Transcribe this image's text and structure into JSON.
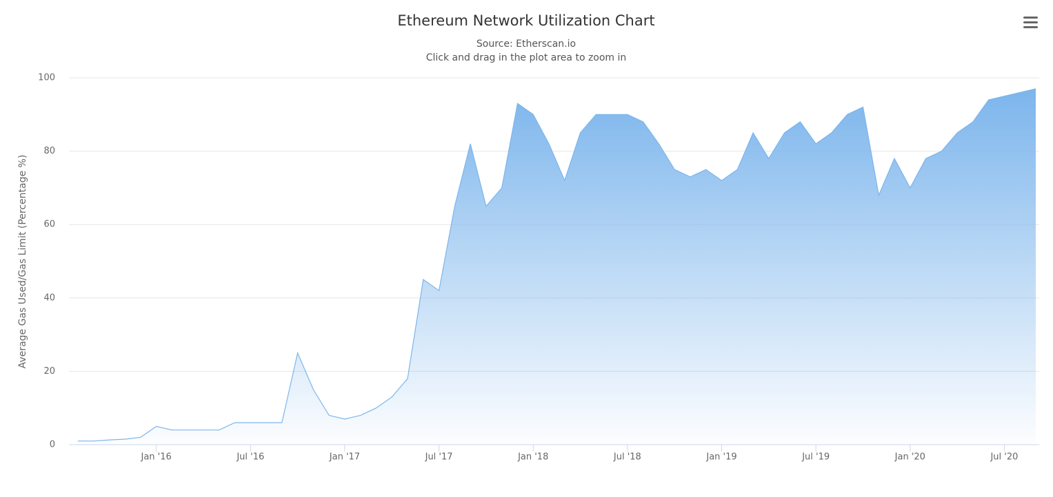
{
  "chart_data": {
    "type": "area",
    "title": "Ethereum Network Utilization Chart",
    "subtitle": "Source: Etherscan.io",
    "note": "Click and drag in the plot area to zoom in",
    "y_label": "Average Gas Used/Gas Limit (Percentage %)",
    "color": "#7cb5ec",
    "grid": true,
    "x": [
      "2015-08",
      "2015-09",
      "2015-10",
      "2015-11",
      "2015-12",
      "2016-01",
      "2016-02",
      "2016-03",
      "2016-04",
      "2016-05",
      "2016-06",
      "2016-07",
      "2016-08",
      "2016-09",
      "2016-10",
      "2016-11",
      "2016-12",
      "2017-01",
      "2017-02",
      "2017-03",
      "2017-04",
      "2017-05",
      "2017-06",
      "2017-07",
      "2017-08",
      "2017-09",
      "2017-10",
      "2017-11",
      "2017-12",
      "2018-01",
      "2018-02",
      "2018-03",
      "2018-04",
      "2018-05",
      "2018-06",
      "2018-07",
      "2018-08",
      "2018-09",
      "2018-10",
      "2018-11",
      "2018-12",
      "2019-01",
      "2019-02",
      "2019-03",
      "2019-04",
      "2019-05",
      "2019-06",
      "2019-07",
      "2019-08",
      "2019-09",
      "2019-10",
      "2019-11",
      "2019-12",
      "2020-01",
      "2020-02",
      "2020-03",
      "2020-04",
      "2020-05",
      "2020-06",
      "2020-07",
      "2020-08",
      "2020-09"
    ],
    "values": [
      1,
      1,
      1.3,
      1.5,
      2,
      5,
      4,
      4,
      4,
      4,
      6,
      6,
      6,
      6,
      25,
      15,
      8,
      7,
      8,
      10,
      13,
      18,
      45,
      42,
      65,
      82,
      65,
      70,
      93,
      90,
      82,
      72,
      85,
      90,
      90,
      90,
      88,
      82,
      75,
      73,
      75,
      72,
      75,
      85,
      78,
      85,
      88,
      82,
      85,
      90,
      92,
      68,
      78,
      70,
      78,
      80,
      85,
      88,
      94,
      95,
      96,
      97
    ],
    "xlim": [
      "2015-07",
      "2020-09"
    ],
    "xticks": [
      {
        "value": "2016-01",
        "label": "Jan '16"
      },
      {
        "value": "2016-07",
        "label": "Jul '16"
      },
      {
        "value": "2017-01",
        "label": "Jan '17"
      },
      {
        "value": "2017-07",
        "label": "Jul '17"
      },
      {
        "value": "2018-01",
        "label": "Jan '18"
      },
      {
        "value": "2018-07",
        "label": "Jul '18"
      },
      {
        "value": "2019-01",
        "label": "Jan '19"
      },
      {
        "value": "2019-07",
        "label": "Jul '19"
      },
      {
        "value": "2020-01",
        "label": "Jan '20"
      },
      {
        "value": "2020-07",
        "label": "Jul '20"
      }
    ],
    "ylim": [
      0,
      100
    ],
    "yticks": [
      0,
      20,
      40,
      60,
      80,
      100
    ]
  }
}
